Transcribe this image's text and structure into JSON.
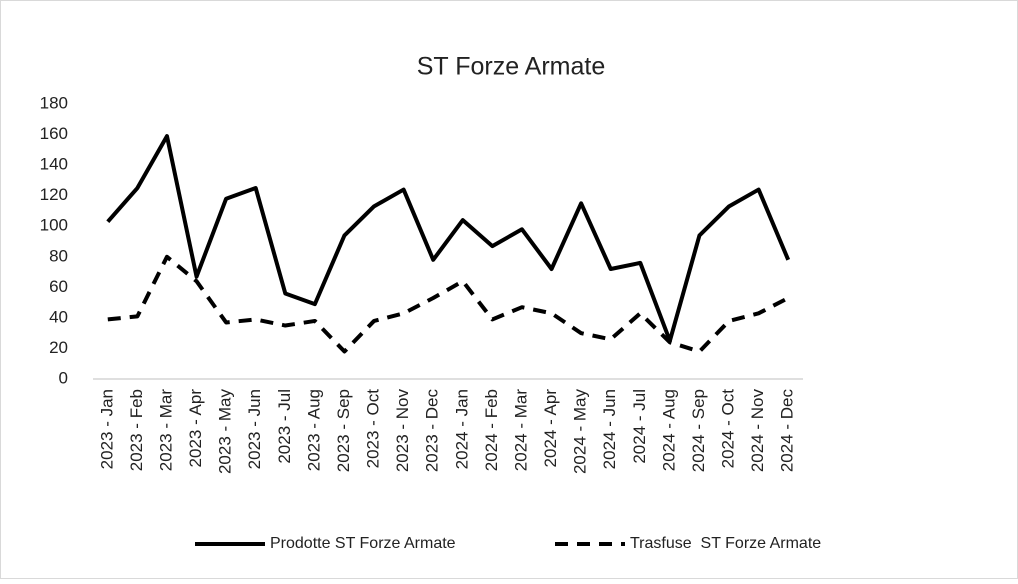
{
  "chart_data": {
    "type": "line",
    "title": "ST Forze Armate",
    "categories": [
      "2023 - Jan",
      "2023 - Feb",
      "2023 - Mar",
      "2023 - Apr",
      "2023 - May",
      "2023 - Jun",
      "2023 - Jul",
      "2023 - Aug",
      "2023 - Sep",
      "2023 - Oct",
      "2023 - Nov",
      "2023 - Dec",
      "2024 - Jan",
      "2024 - Feb",
      "2024 - Mar",
      "2024 - Apr",
      "2024 - May",
      "2024 - Jun",
      "2024 - Jul",
      "2024 - Aug",
      "2024 - Sep",
      "2024 - Oct",
      "2024 - Nov",
      "2024 - Dec"
    ],
    "series": [
      {
        "name": "Prodotte ST Forze Armate",
        "color": "#000000",
        "dash": "solid",
        "values": [
          103,
          125,
          159,
          67,
          118,
          125,
          56,
          49,
          94,
          113,
          124,
          78,
          104,
          87,
          98,
          72,
          115,
          72,
          76,
          25,
          94,
          113,
          124,
          78
        ]
      },
      {
        "name": "Trasfuse  ST Forze Armate",
        "color": "#000000",
        "dash": "dashed",
        "values": [
          39,
          41,
          80,
          64,
          37,
          39,
          35,
          38,
          18,
          38,
          43,
          53,
          64,
          39,
          47,
          43,
          30,
          26,
          43,
          24,
          18,
          38,
          43,
          53
        ]
      }
    ],
    "ylim": [
      0,
      180
    ],
    "yticks": [
      0,
      20,
      40,
      60,
      80,
      100,
      120,
      140,
      160,
      180
    ],
    "grid": false,
    "legend": "bottom"
  }
}
